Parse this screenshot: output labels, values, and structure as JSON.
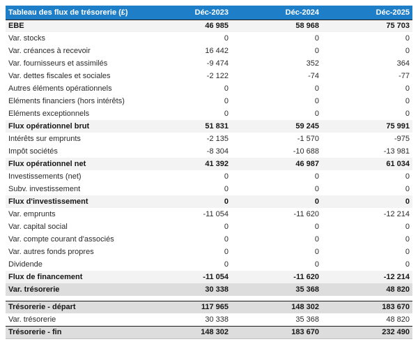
{
  "table": {
    "title": "Tableau des flux de trésorerie (£)",
    "columns": [
      "Déc-2023",
      "Déc-2024",
      "Déc-2025"
    ],
    "colors": {
      "header_bg": "#1E7EC8",
      "header_text": "#FFFFFF",
      "subtotal_bg": "#F3F3F3",
      "summary_bg": "#DDDDDD",
      "border_dark": "#1C1C1C"
    },
    "rows": [
      {
        "label": "EBE",
        "values": [
          "46 985",
          "58 968",
          "75 703"
        ],
        "style": "subtotal"
      },
      {
        "label": "Var. stocks",
        "values": [
          "0",
          "0",
          "0"
        ],
        "style": "normal"
      },
      {
        "label": "Var. créances à recevoir",
        "values": [
          "16 442",
          "0",
          "0"
        ],
        "style": "normal"
      },
      {
        "label": "Var. fournisseurs et assimilés",
        "values": [
          "-9 474",
          "352",
          "364"
        ],
        "style": "normal"
      },
      {
        "label": "Var. dettes fiscales et sociales",
        "values": [
          "-2 122",
          "-74",
          "-77"
        ],
        "style": "normal"
      },
      {
        "label": "Autres éléments opérationnels",
        "values": [
          "0",
          "0",
          "0"
        ],
        "style": "normal"
      },
      {
        "label": "Eléments financiers (hors intérêts)",
        "values": [
          "0",
          "0",
          "0"
        ],
        "style": "normal"
      },
      {
        "label": "Eléments exceptionnels",
        "values": [
          "0",
          "0",
          "0"
        ],
        "style": "normal"
      },
      {
        "label": "Flux opérationnel brut",
        "values": [
          "51 831",
          "59 245",
          "75 991"
        ],
        "style": "subtotal"
      },
      {
        "label": "Intérêts sur emprunts",
        "values": [
          "-2 135",
          "-1 570",
          "-975"
        ],
        "style": "normal"
      },
      {
        "label": "Impôt sociétés",
        "values": [
          "-8 304",
          "-10 688",
          "-13 981"
        ],
        "style": "normal"
      },
      {
        "label": "Flux opérationnel net",
        "values": [
          "41 392",
          "46 987",
          "61 034"
        ],
        "style": "subtotal"
      },
      {
        "label": "Investissements (net)",
        "values": [
          "0",
          "0",
          "0"
        ],
        "style": "normal"
      },
      {
        "label": "Subv. investissement",
        "values": [
          "0",
          "0",
          "0"
        ],
        "style": "normal"
      },
      {
        "label": "Flux d'investissement",
        "values": [
          "0",
          "0",
          "0"
        ],
        "style": "subtotal"
      },
      {
        "label": "Var. emprunts",
        "values": [
          "-11 054",
          "-11 620",
          "-12 214"
        ],
        "style": "normal"
      },
      {
        "label": "Var. capital social",
        "values": [
          "0",
          "0",
          "0"
        ],
        "style": "normal"
      },
      {
        "label": "Var. compte courant d'associés",
        "values": [
          "0",
          "0",
          "0"
        ],
        "style": "normal"
      },
      {
        "label": "Var. autres fonds propres",
        "values": [
          "0",
          "0",
          "0"
        ],
        "style": "normal"
      },
      {
        "label": "Dividende",
        "values": [
          "0",
          "0",
          "0"
        ],
        "style": "normal"
      },
      {
        "label": "Flux de financement",
        "values": [
          "-11 054",
          "-11 620",
          "-12 214"
        ],
        "style": "subtotal"
      },
      {
        "label": "Var. trésorerie",
        "values": [
          "30 338",
          "35 368",
          "48 820"
        ],
        "style": "summary"
      },
      {
        "label": "",
        "values": [],
        "style": "spacer"
      },
      {
        "label": "Trésorerie - départ",
        "values": [
          "117 965",
          "148 302",
          "183 670"
        ],
        "style": "summary dark-top"
      },
      {
        "label": "Var. trésorerie",
        "values": [
          "30 338",
          "35 368",
          "48 820"
        ],
        "style": "normal"
      },
      {
        "label": "Trésorerie - fin",
        "values": [
          "148 302",
          "183 670",
          "232 490"
        ],
        "style": "summary dark-top bottom-edge"
      }
    ]
  }
}
